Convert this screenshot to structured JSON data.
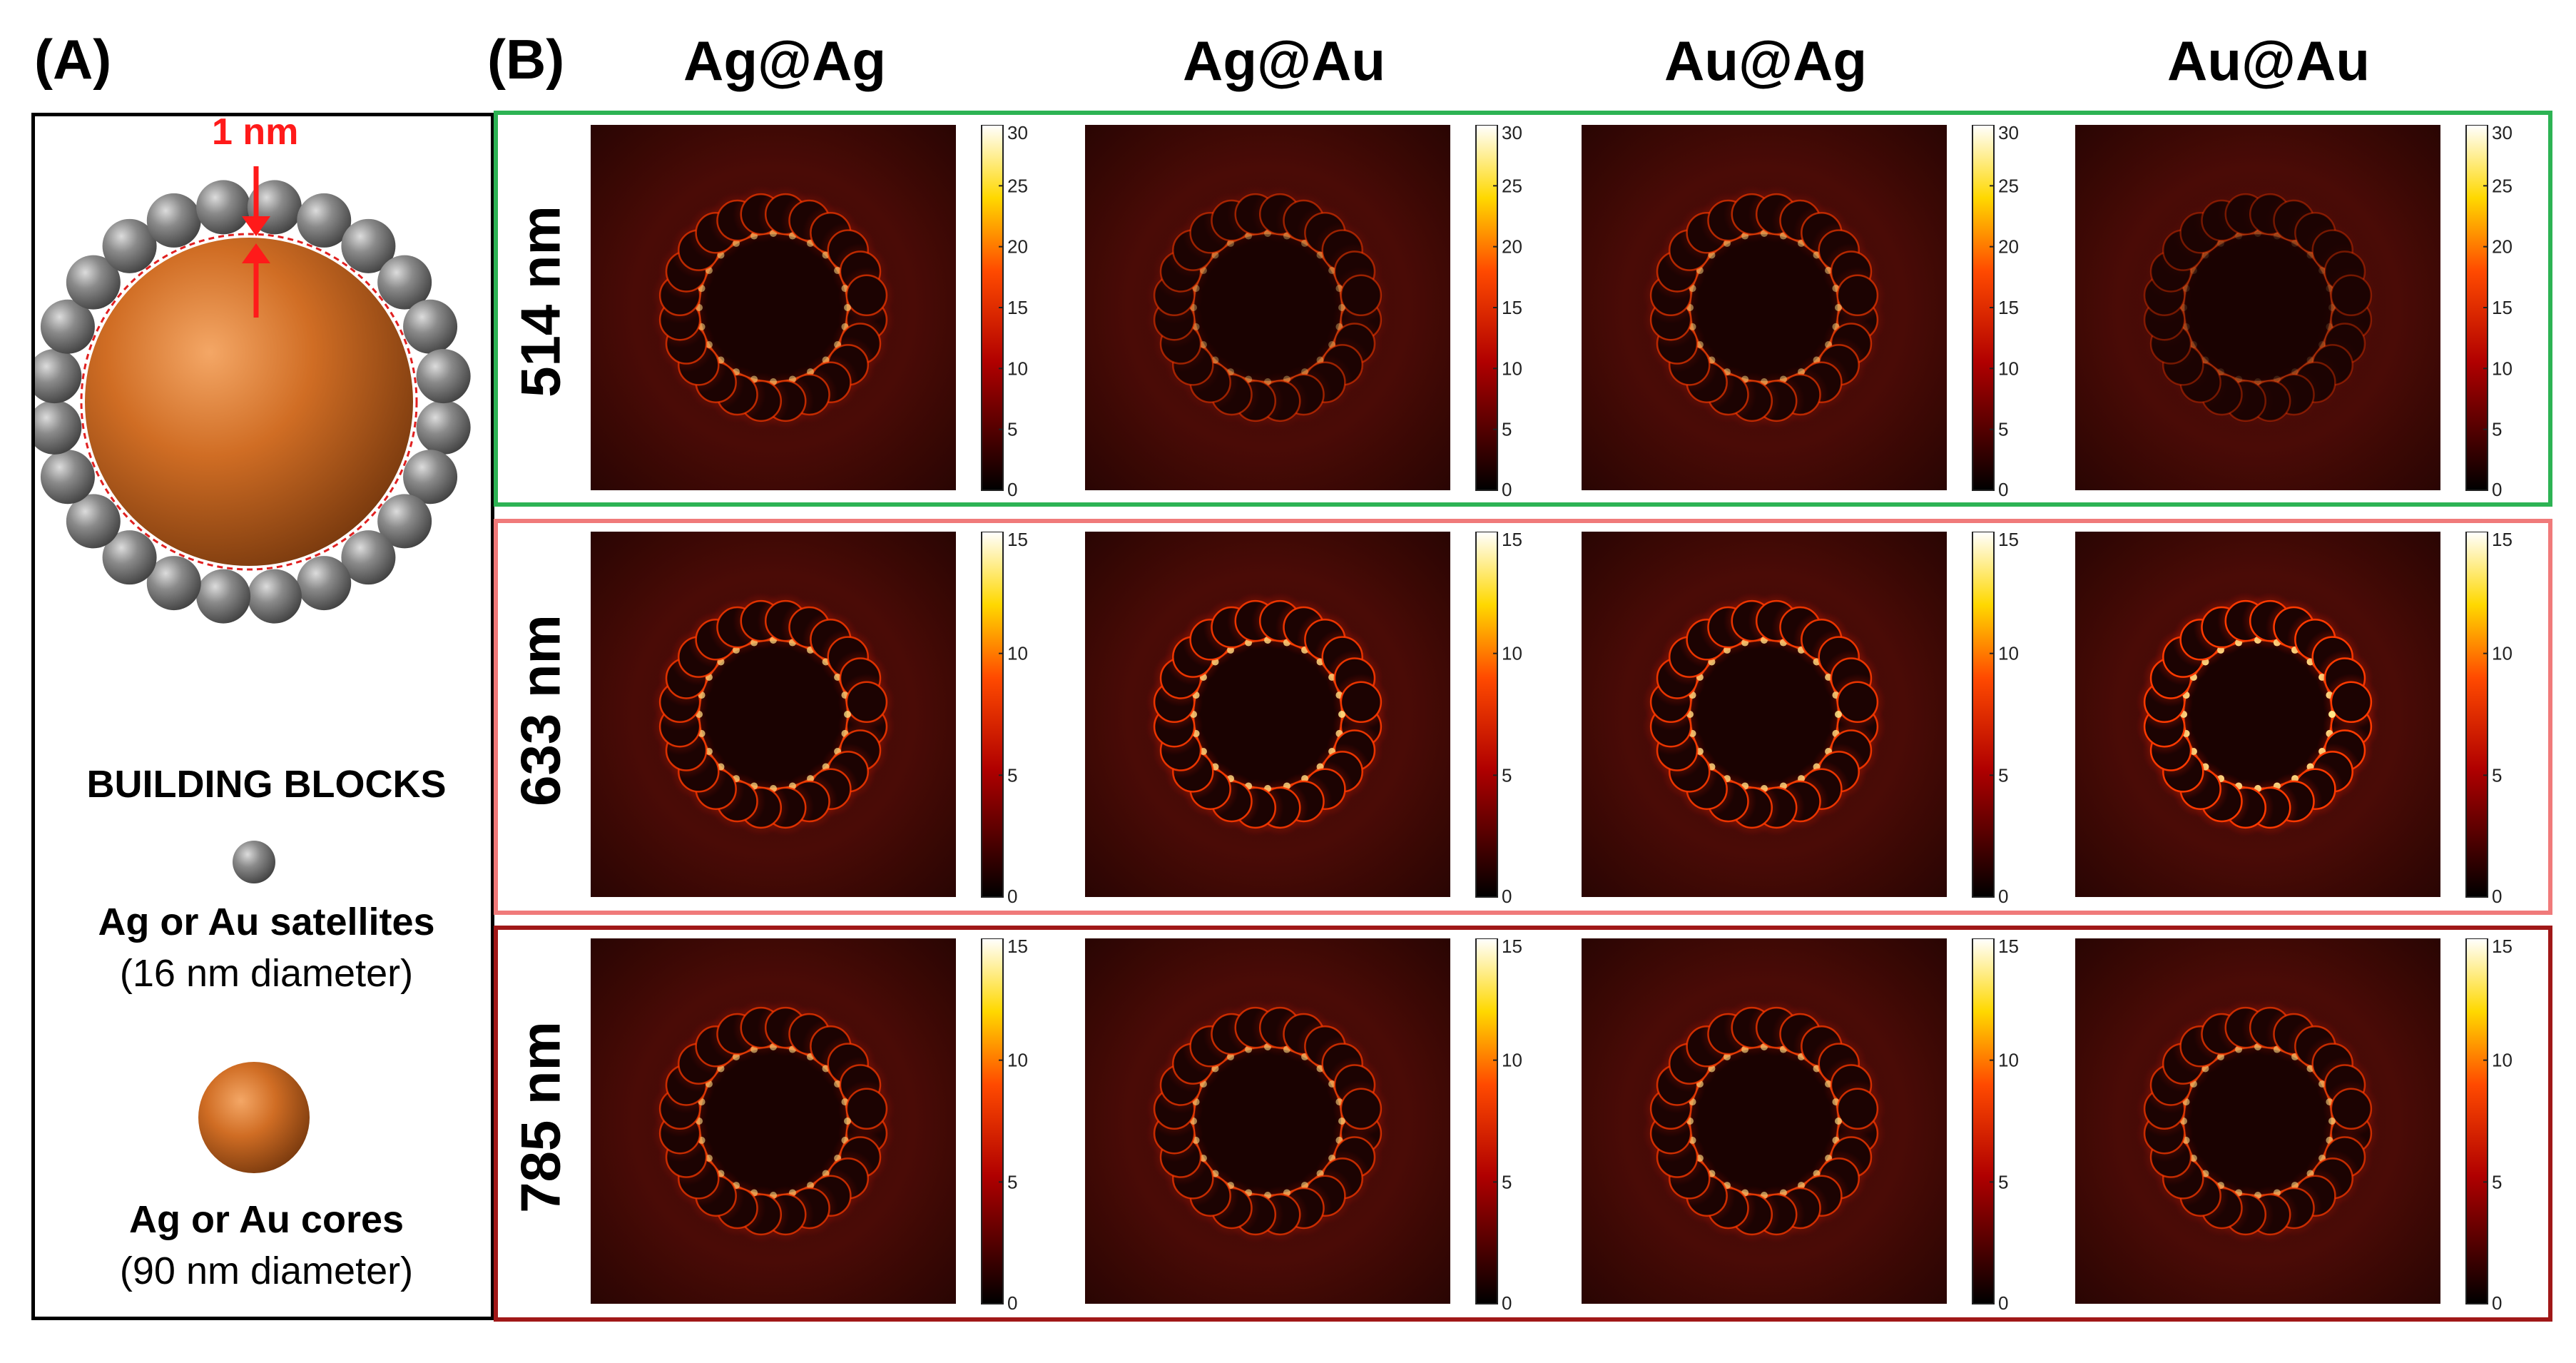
{
  "panel_a": {
    "label": "(A)",
    "gap_label": "1 nm",
    "building_blocks_title": "BUILDING BLOCKS",
    "satellite_name": "Ag or Au satellites",
    "satellite_diameter": "(16 nm diameter)",
    "core_name": "Ag or Au cores",
    "core_diameter": "(90 nm diameter)",
    "satellite_count": 24,
    "colors": {
      "core": "#c8651e",
      "satellite": "#6b6b6b",
      "arrow": "#ff0000",
      "dashed_ring": "#e02020"
    }
  },
  "panel_b": {
    "label": "(B)",
    "columns": [
      "Ag@Ag",
      "Ag@Au",
      "Au@Ag",
      "Au@Au"
    ],
    "rows": [
      {
        "wavelength": "514 nm",
        "border_color": "#2db354",
        "scale_max": 30,
        "ticks": [
          "0",
          "5",
          "10",
          "15",
          "20",
          "25",
          "30"
        ],
        "intensity": [
          0.55,
          0.35,
          0.5,
          0.12
        ]
      },
      {
        "wavelength": "633 nm",
        "border_color": "#f07a7a",
        "scale_max": 15,
        "ticks": [
          "0",
          "5",
          "10",
          "15"
        ],
        "intensity": [
          0.75,
          0.85,
          0.85,
          1.0
        ]
      },
      {
        "wavelength": "785 nm",
        "border_color": "#a01818",
        "scale_max": 15,
        "ticks": [
          "0",
          "5",
          "10",
          "15"
        ],
        "intensity": [
          0.6,
          0.6,
          0.65,
          0.6
        ]
      }
    ],
    "colormap": "hot"
  }
}
